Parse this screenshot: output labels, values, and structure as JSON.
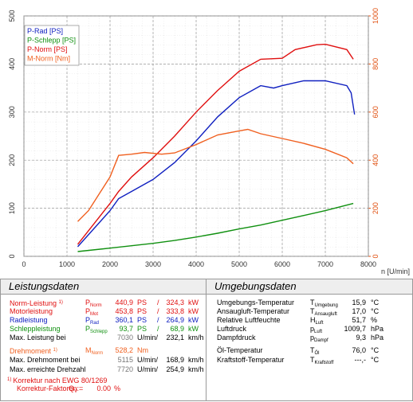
{
  "chart_data": {
    "type": "line",
    "x_label": "n [U/min]",
    "xlim": [
      0,
      8000
    ],
    "xticks": [
      0,
      1000,
      2000,
      3000,
      4000,
      5000,
      6000,
      7000,
      8000
    ],
    "ylim": [
      0,
      500
    ],
    "yticks": [
      0,
      100,
      200,
      300,
      400,
      500
    ],
    "y2lim": [
      0,
      1000
    ],
    "y2ticks": [
      0,
      200,
      400,
      600,
      800,
      1000
    ],
    "y2color": "#e05010",
    "grid": true,
    "legend": "upper left",
    "series": [
      {
        "name": "P-Rad [PS]",
        "color": "#1020c0",
        "x": [
          1250,
          2000,
          2200,
          2500,
          3000,
          3500,
          4000,
          4500,
          5000,
          5500,
          5800,
          6000,
          6500,
          7000,
          7500,
          7600,
          7680
        ],
        "values": [
          20,
          95,
          120,
          135,
          160,
          195,
          240,
          290,
          330,
          355,
          350,
          355,
          365,
          365,
          355,
          340,
          295
        ]
      },
      {
        "name": "P-Schlepp [PS]",
        "color": "#109010",
        "x": [
          1250,
          2000,
          3000,
          3500,
          4000,
          4500,
          5000,
          5500,
          6000,
          6500,
          7000,
          7650
        ],
        "values": [
          10,
          17,
          27,
          33,
          40,
          48,
          57,
          65,
          75,
          85,
          95,
          110
        ]
      },
      {
        "name": "P-Norm [PS]",
        "color": "#e01010",
        "x": [
          1250,
          2000,
          2200,
          2500,
          3000,
          3500,
          4000,
          4500,
          5000,
          5500,
          6000,
          6300,
          6800,
          7000,
          7500,
          7650
        ],
        "values": [
          25,
          110,
          135,
          165,
          205,
          250,
          300,
          345,
          385,
          410,
          412,
          430,
          440,
          441,
          430,
          410
        ]
      },
      {
        "name": "M-Norm [Nm]",
        "color": "#f06020",
        "axis": "y2",
        "x": [
          1250,
          1500,
          2000,
          2200,
          2500,
          2800,
          3200,
          3500,
          4000,
          4500,
          5000,
          5200,
          5500,
          6000,
          6500,
          7000,
          7500,
          7650
        ],
        "values": [
          145,
          190,
          330,
          420,
          425,
          432,
          425,
          430,
          465,
          505,
          522,
          528,
          510,
          490,
          470,
          445,
          410,
          385
        ]
      }
    ]
  },
  "leistungsdaten": {
    "title": "Leistungsdaten",
    "rows": [
      {
        "label": "Norm-Leistung",
        "note": "1)",
        "symbol": "P",
        "sub": "Norm",
        "value": "440,9",
        "unit": "PS",
        "sep": "/",
        "value2": "324,3",
        "unit2": "kW",
        "color": "#e01010"
      },
      {
        "label": "Motorleistung",
        "symbol": "P",
        "sub": "Mot",
        "value": "453,8",
        "unit": "PS",
        "sep": "/",
        "value2": "333,8",
        "unit2": "kW",
        "color": "#e01010"
      },
      {
        "label": "Radleistung",
        "symbol": "P",
        "sub": "Rad",
        "value": "360,1",
        "unit": "PS",
        "sep": "/",
        "value2": "264,9",
        "unit2": "kW",
        "color": "#1020c0"
      },
      {
        "label": "Schleppleistung",
        "symbol": "P",
        "sub": "Schlepp",
        "value": "93,7",
        "unit": "PS",
        "sep": "/",
        "value2": "68,9",
        "unit2": "kW",
        "color": "#109010"
      },
      {
        "label": "Max. Leistung bei",
        "value": "7030",
        "unit": "U/min/",
        "value2": "232,1",
        "unit2": "km/h",
        "color": "#000000"
      },
      {
        "label": "Drehmoment",
        "note": "1)",
        "symbol": "M",
        "sub": "Norm",
        "value": "528,2",
        "unit": "Nm",
        "color": "#f06020"
      },
      {
        "label": "Max. Drehmoment bei",
        "value": "5115",
        "unit": "U/min/",
        "value2": "168,9",
        "unit2": "km/h",
        "color": "#000000"
      },
      {
        "label": "Max. erreichte Drehzahl",
        "value": "7720",
        "unit": "U/min/",
        "value2": "254,9",
        "unit2": "km/h",
        "color": "#000000"
      }
    ],
    "footnotes": [
      {
        "note": "1)",
        "label": "Korrektur nach EWG 80/1269",
        "color": "#e01010"
      },
      {
        "label": "Korrektur-Faktoren:",
        "symbol": "Q",
        "sub": "V",
        "eq": "=",
        "value": "0.00",
        "unit": "%",
        "color": "#e01010"
      }
    ]
  },
  "umgebungsdaten": {
    "title": "Umgebungsdaten",
    "rows": [
      {
        "label": "Umgebungs-Temperatur",
        "symbol": "T",
        "sub": "Umgebung",
        "value": "15,9",
        "unit": "°C"
      },
      {
        "label": "Ansaugluft-Temperatur",
        "symbol": "T",
        "sub": "Ansaugluft",
        "value": "17,0",
        "unit": "°C"
      },
      {
        "label": "Relative Luftfeuchte",
        "symbol": "H",
        "sub": "Luft",
        "value": "51,7",
        "unit": "%"
      },
      {
        "label": "Luftdruck",
        "symbol": "p",
        "sub": "Luft",
        "value": "1009,7",
        "unit": "hPa"
      },
      {
        "label": "Dampfdruck",
        "symbol": "p",
        "sub": "Dampf",
        "value": "9,3",
        "unit": "hPa"
      },
      {
        "label": "Öl-Temperatur",
        "symbol": "T",
        "sub": "Öl",
        "value": "76,0",
        "unit": "°C"
      },
      {
        "label": "Kraftstoff-Temperatur",
        "symbol": "T",
        "sub": "Kraftstoff",
        "value": "---,-",
        "unit": "°C"
      }
    ]
  }
}
